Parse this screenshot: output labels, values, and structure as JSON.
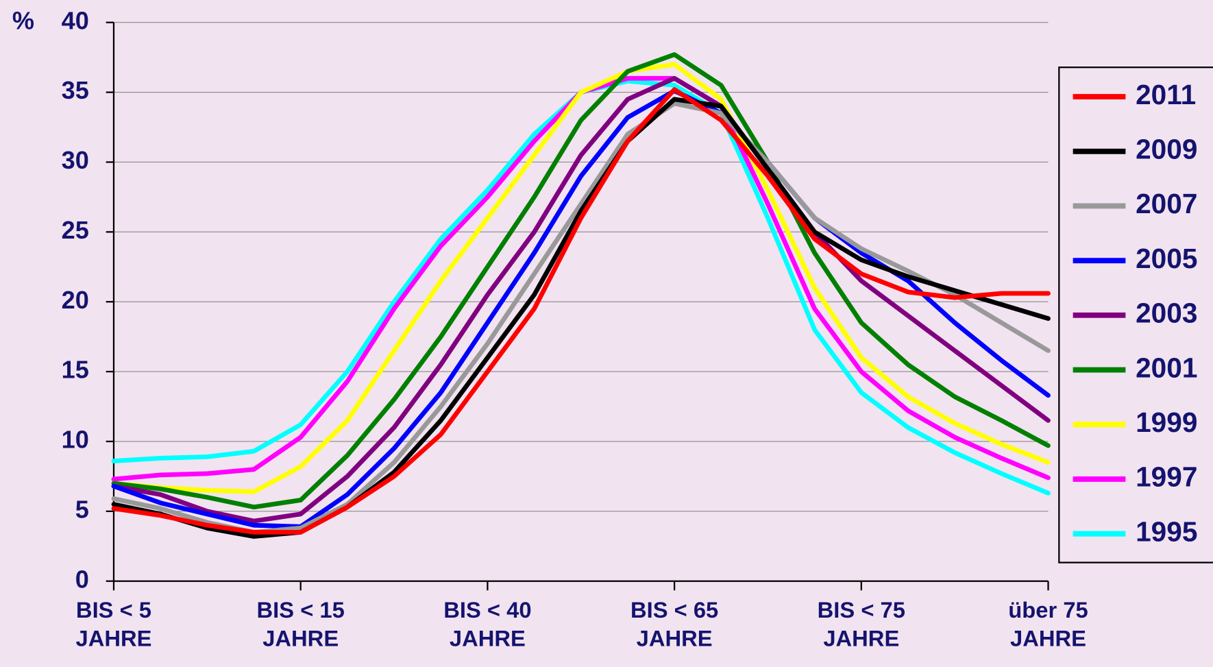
{
  "chart_data": {
    "type": "line",
    "y_label": "%",
    "x": [
      0,
      0.25,
      0.5,
      0.75,
      1,
      1.25,
      1.5,
      1.75,
      2,
      2.25,
      2.5,
      2.75,
      3,
      3.25,
      3.5,
      3.75,
      4,
      4.25,
      4.5,
      4.75,
      5
    ],
    "xlim": [
      0,
      5
    ],
    "xticks": [
      {
        "value": 0,
        "label": "BIS  < 5\nJAHRE"
      },
      {
        "value": 1,
        "label": "BIS < 15\nJAHRE"
      },
      {
        "value": 2,
        "label": "BIS < 40\nJAHRE"
      },
      {
        "value": 3,
        "label": "BIS < 65\nJAHRE"
      },
      {
        "value": 4,
        "label": "BIS < 75\nJAHRE"
      },
      {
        "value": 5,
        "label": "über 75\nJAHRE"
      }
    ],
    "ylim": [
      0,
      40
    ],
    "yticks": [
      0,
      5,
      10,
      15,
      20,
      25,
      30,
      35,
      40
    ],
    "grid": true,
    "legend": "right",
    "series": [
      {
        "name": "2011",
        "color": "#ff0000",
        "values": [
          5.2,
          4.7,
          4.0,
          3.5,
          3.5,
          5.3,
          7.5,
          10.5,
          15,
          19.5,
          26,
          31.5,
          35.2,
          33,
          29,
          24.5,
          22,
          20.7,
          20.3,
          20.6,
          20.6
        ]
      },
      {
        "name": "2009",
        "color": "#000000",
        "values": [
          5.5,
          4.8,
          3.8,
          3.2,
          3.5,
          5.3,
          7.8,
          11.5,
          16,
          20.5,
          26.5,
          31.5,
          34.5,
          34,
          29.5,
          25,
          23,
          21.8,
          20.8,
          19.8,
          18.8
        ]
      },
      {
        "name": "2007",
        "color": "#999999",
        "values": [
          5.9,
          5.2,
          4.2,
          3.5,
          3.8,
          5.5,
          8.5,
          12.5,
          17,
          22,
          27,
          32,
          34.2,
          33.5,
          30,
          26,
          23.8,
          22.2,
          20.5,
          18.5,
          16.5
        ]
      },
      {
        "name": "2005",
        "color": "#0000ff",
        "values": [
          6.8,
          5.6,
          4.8,
          4.0,
          3.9,
          6.2,
          9.5,
          13.5,
          18.5,
          23.5,
          29,
          33.2,
          35.1,
          33.5,
          30,
          26,
          23.5,
          21.5,
          18.5,
          15.8,
          13.3
        ]
      },
      {
        "name": "2003",
        "color": "#800080",
        "values": [
          6.8,
          6.2,
          5.0,
          4.3,
          4.8,
          7.5,
          11,
          15.5,
          20.5,
          25,
          30.5,
          34.5,
          36,
          34,
          29.5,
          25,
          21.5,
          19,
          16.5,
          14,
          11.5
        ]
      },
      {
        "name": "2001",
        "color": "#008000",
        "values": [
          7.0,
          6.6,
          6.0,
          5.3,
          5.8,
          9,
          13,
          17.5,
          22.5,
          27.5,
          33,
          36.5,
          37.7,
          35.5,
          30,
          23.5,
          18.5,
          15.5,
          13.2,
          11.5,
          9.7
        ]
      },
      {
        "name": "1999",
        "color": "#ffff00",
        "values": [
          7.0,
          6.7,
          6.5,
          6.4,
          8.2,
          11.5,
          16.5,
          21.5,
          26,
          30.5,
          35,
          36.5,
          37,
          34.5,
          28,
          21,
          16,
          13.2,
          11.3,
          9.8,
          8.5
        ]
      },
      {
        "name": "1997",
        "color": "#ff00ff",
        "values": [
          7.3,
          7.6,
          7.7,
          8.0,
          10.3,
          14.3,
          19.5,
          24,
          27.5,
          31.5,
          35,
          36,
          36,
          34,
          27,
          19.5,
          15,
          12.2,
          10.3,
          8.8,
          7.4
        ]
      },
      {
        "name": "1995",
        "color": "#00ffff",
        "values": [
          8.6,
          8.8,
          8.9,
          9.3,
          11.2,
          15,
          20,
          24.5,
          28,
          32,
          35,
          35.8,
          35.5,
          33.5,
          26,
          18,
          13.5,
          11,
          9.2,
          7.7,
          6.3
        ]
      }
    ]
  }
}
